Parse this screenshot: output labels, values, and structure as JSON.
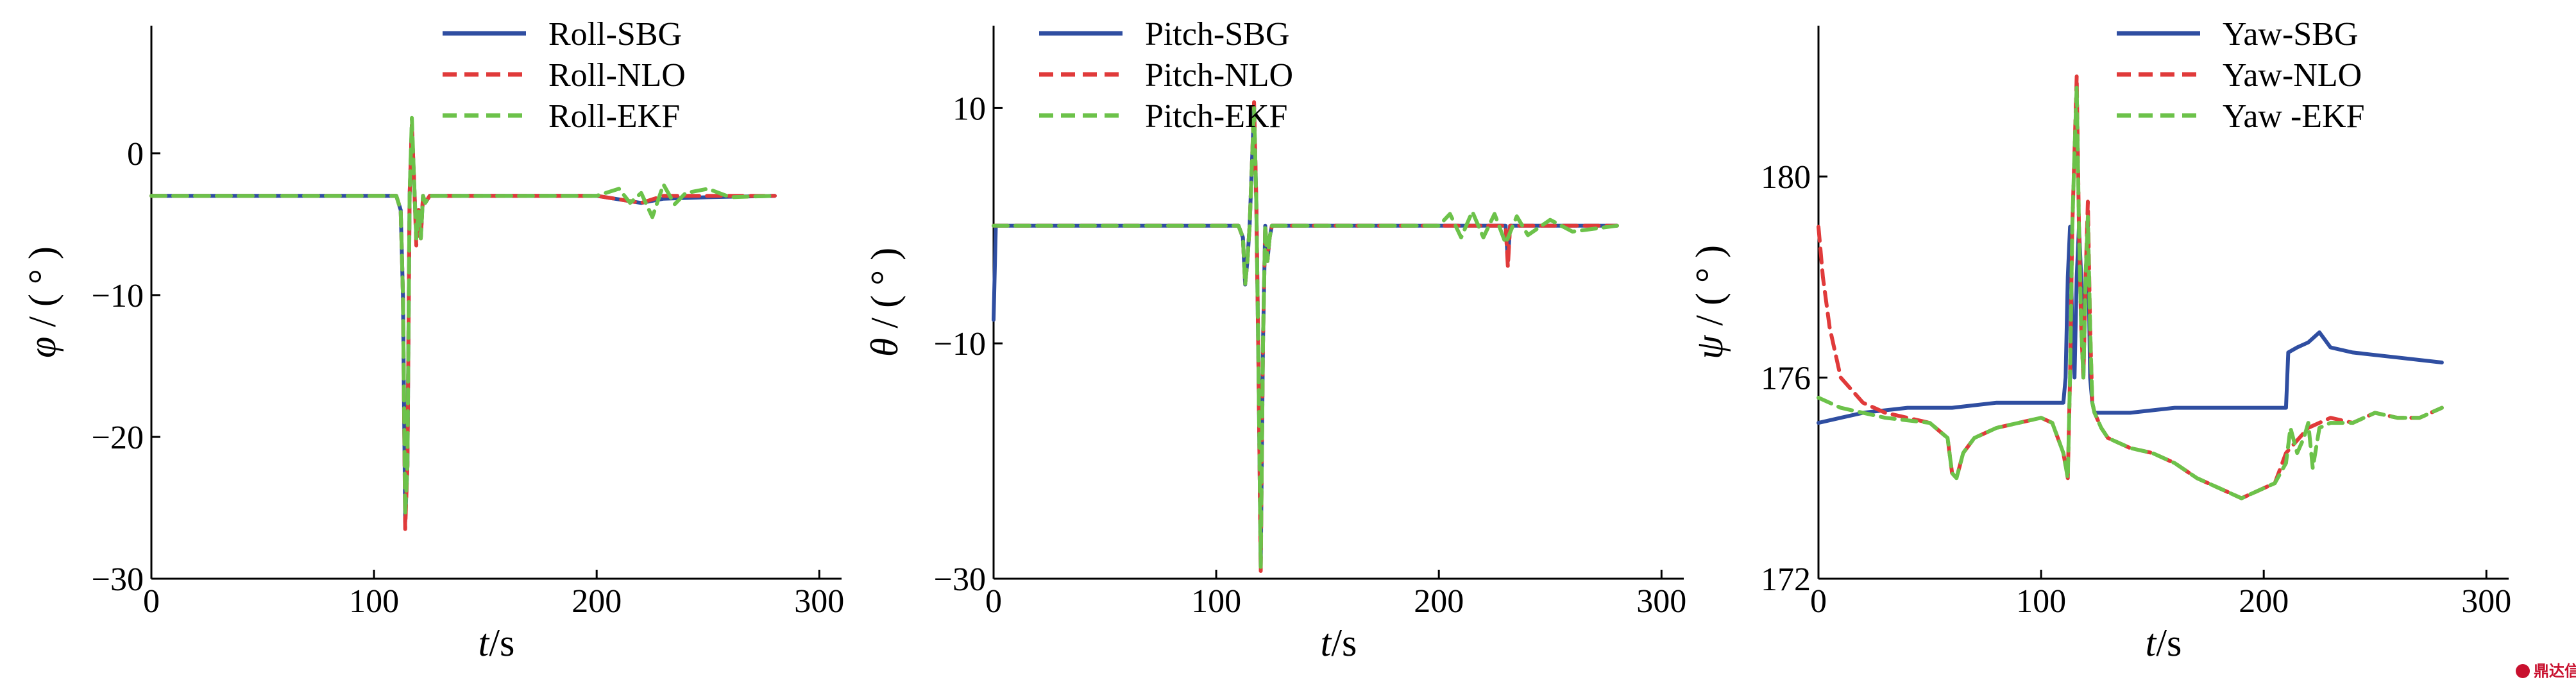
{
  "chart_data": [
    {
      "type": "line",
      "ylabel_symbol": "φ",
      "ylabel_unit": "/ ( ° )",
      "xlabel_symbol": "t",
      "xlabel_unit": "/s",
      "xlim": [
        0,
        310
      ],
      "ylim": [
        -30,
        9
      ],
      "xticks": [
        0,
        100,
        200,
        300
      ],
      "yticks": [
        0,
        -10,
        -20,
        -30
      ],
      "legend_position": "top-right",
      "series": [
        {
          "name": "Roll-SBG",
          "color": "#2f4ea1",
          "dash": false,
          "x": [
            0,
            50,
            110,
            112,
            113,
            114,
            115,
            116,
            117,
            118,
            119,
            120,
            121,
            122,
            123,
            125,
            150,
            200,
            220,
            230,
            250,
            280
          ],
          "y": [
            -3,
            -3,
            -3,
            -4,
            -10,
            -26,
            -22,
            -3,
            2,
            -2,
            -6,
            -4,
            -6,
            -3,
            -3.5,
            -3,
            -3,
            -3,
            -3.5,
            -3.2,
            -3.1,
            -3
          ]
        },
        {
          "name": "Roll-NLO",
          "color": "#e03a3a",
          "dash": true,
          "x": [
            0,
            50,
            110,
            112,
            113,
            114,
            115,
            116,
            117,
            118,
            119,
            120,
            121,
            122,
            123,
            125,
            150,
            200,
            220,
            230,
            250,
            280
          ],
          "y": [
            -3,
            -3,
            -3,
            -4,
            -10,
            -26.5,
            -22,
            -3,
            2,
            -2,
            -6.5,
            -4,
            -6,
            -3,
            -3.5,
            -3,
            -3,
            -3,
            -3.5,
            -3,
            -3,
            -3
          ]
        },
        {
          "name": "Roll-EKF",
          "color": "#6cc24a",
          "dash": true,
          "x": [
            0,
            50,
            110,
            112,
            113,
            114,
            115,
            116,
            117,
            118,
            119,
            120,
            121,
            122,
            123,
            125,
            150,
            200,
            210,
            215,
            220,
            225,
            230,
            235,
            240,
            250,
            260,
            280
          ],
          "y": [
            -3,
            -3,
            -3,
            -4,
            -10,
            -25.5,
            -22,
            -3,
            2.5,
            -2,
            -6,
            -4,
            -6,
            -3,
            -3.5,
            -3,
            -3,
            -3,
            -2.5,
            -3.5,
            -2.8,
            -4.5,
            -2.2,
            -3.6,
            -2.8,
            -2.5,
            -3.1,
            -3
          ]
        }
      ]
    },
    {
      "type": "line",
      "ylabel_symbol": "θ",
      "ylabel_unit": "/ ( ° )",
      "xlabel_symbol": "t",
      "xlabel_unit": "/s",
      "xlim": [
        0,
        310
      ],
      "ylim": [
        -30,
        17
      ],
      "xticks": [
        0,
        100,
        200,
        300
      ],
      "yticks": [
        10,
        -10,
        -30
      ],
      "legend_position": "top",
      "series": [
        {
          "name": "Pitch-SBG",
          "color": "#2f4ea1",
          "dash": false,
          "x": [
            0,
            1,
            3,
            50,
            110,
            112,
            113,
            114,
            115,
            116,
            117,
            118,
            119,
            120,
            121,
            122,
            123,
            124,
            125,
            130,
            150,
            200,
            220,
            230,
            231,
            232,
            240,
            260,
            280
          ],
          "y": [
            -8,
            0,
            0,
            0,
            0,
            -1,
            -5,
            -3,
            0,
            5,
            10,
            2,
            -12,
            -29,
            -10,
            0,
            -3,
            -1,
            0,
            0,
            0,
            0,
            0,
            0,
            -3,
            0,
            0,
            0,
            0
          ]
        },
        {
          "name": "Pitch-NLO",
          "color": "#e03a3a",
          "dash": true,
          "x": [
            0,
            3,
            50,
            110,
            112,
            113,
            114,
            115,
            116,
            117,
            118,
            119,
            120,
            121,
            122,
            123,
            124,
            125,
            130,
            150,
            200,
            220,
            230,
            231,
            232,
            240,
            260,
            280
          ],
          "y": [
            0,
            0,
            0,
            0,
            -1,
            -5,
            -3,
            0,
            5,
            10.5,
            2,
            -12,
            -29.5,
            -10,
            0,
            -3,
            -1,
            0,
            0,
            0,
            0,
            0,
            0,
            -3.5,
            0,
            0,
            0,
            0
          ]
        },
        {
          "name": "Pitch-EKF",
          "color": "#6cc24a",
          "dash": true,
          "x": [
            0,
            3,
            50,
            110,
            112,
            113,
            114,
            115,
            116,
            117,
            118,
            119,
            120,
            121,
            122,
            123,
            124,
            125,
            130,
            150,
            200,
            205,
            210,
            215,
            220,
            225,
            230,
            235,
            240,
            250,
            260,
            280
          ],
          "y": [
            0,
            0,
            0,
            0,
            -1,
            -5,
            -3,
            0,
            5,
            10,
            2,
            -12,
            -29,
            -10,
            0,
            -3,
            -1,
            0,
            0,
            0,
            0,
            1,
            -1,
            1.2,
            -1,
            1,
            -1.5,
            0.8,
            -0.8,
            0.5,
            -0.5,
            0
          ]
        }
      ]
    },
    {
      "type": "line",
      "ylabel_symbol": "ψ",
      "ylabel_unit": "/ ( ° )",
      "xlabel_symbol": "t",
      "xlabel_unit": "/s",
      "xlim": [
        0,
        310
      ],
      "ylim": [
        172,
        183
      ],
      "xticks": [
        0,
        100,
        200,
        300
      ],
      "yticks": [
        180,
        176,
        172
      ],
      "legend_position": "top-right",
      "series": [
        {
          "name": "Yaw-SBG",
          "color": "#2f4ea1",
          "dash": false,
          "x": [
            0,
            10,
            20,
            40,
            60,
            80,
            100,
            110,
            111,
            112,
            113,
            114,
            115,
            116,
            117,
            118,
            119,
            120,
            121,
            122,
            123,
            124,
            125,
            126,
            130,
            140,
            160,
            180,
            200,
            210,
            211,
            215,
            220,
            225,
            230,
            240,
            260,
            280
          ],
          "y": [
            175.1,
            175.2,
            175.3,
            175.4,
            175.4,
            175.5,
            175.5,
            175.5,
            176,
            178,
            179,
            177,
            176,
            178,
            179,
            178,
            176,
            178,
            179,
            176,
            175.5,
            175.3,
            175.3,
            175.3,
            175.3,
            175.3,
            175.4,
            175.4,
            175.4,
            175.4,
            176.5,
            176.6,
            176.7,
            176.9,
            176.6,
            176.5,
            176.4,
            176.3
          ]
        },
        {
          "name": "Yaw-NLO",
          "color": "#e03a3a",
          "dash": true,
          "x": [
            0,
            2,
            5,
            10,
            20,
            30,
            50,
            58,
            60,
            62,
            65,
            70,
            80,
            100,
            105,
            110,
            112,
            113,
            114,
            115,
            116,
            117,
            118,
            119,
            120,
            121,
            122,
            123,
            124,
            125,
            127,
            130,
            140,
            150,
            160,
            170,
            180,
            190,
            200,
            205,
            210,
            220,
            230,
            240,
            250,
            260,
            270,
            280
          ],
          "y": [
            179,
            178,
            177,
            176,
            175.5,
            175.3,
            175.1,
            174.8,
            174.1,
            174,
            174.5,
            174.8,
            175,
            175.2,
            175.1,
            174.5,
            174,
            176,
            179,
            180.5,
            182,
            179,
            177,
            176,
            178,
            179.5,
            177,
            175.5,
            175.3,
            175.2,
            175,
            174.8,
            174.6,
            174.5,
            174.3,
            174,
            173.8,
            173.6,
            173.8,
            173.9,
            174.5,
            175,
            175.2,
            175.1,
            175.3,
            175.2,
            175.2,
            175.4
          ]
        },
        {
          "name": "Yaw -EKF",
          "color": "#6cc24a",
          "dash": true,
          "x": [
            0,
            5,
            10,
            20,
            30,
            50,
            58,
            60,
            62,
            65,
            70,
            80,
            100,
            105,
            110,
            112,
            113,
            114,
            115,
            116,
            117,
            118,
            119,
            120,
            121,
            122,
            123,
            124,
            125,
            127,
            130,
            140,
            150,
            160,
            170,
            180,
            190,
            200,
            205,
            210,
            212,
            215,
            218,
            220,
            222,
            225,
            230,
            240,
            250,
            260,
            270,
            280
          ],
          "y": [
            175.6,
            175.5,
            175.4,
            175.3,
            175.2,
            175.1,
            174.8,
            174.1,
            174,
            174.5,
            174.8,
            175,
            175.2,
            175.1,
            174.5,
            174,
            176,
            179,
            180.5,
            181.8,
            179,
            177,
            176,
            178,
            179.2,
            177,
            175.5,
            175.3,
            175.2,
            175,
            174.8,
            174.6,
            174.5,
            174.3,
            174,
            173.8,
            173.6,
            173.8,
            173.9,
            174.3,
            175,
            174.5,
            174.8,
            175.1,
            174.2,
            175,
            175.1,
            175.1,
            175.3,
            175.2,
            175.2,
            175.4
          ]
        }
      ]
    }
  ],
  "watermark": {
    "text": "鼎达信",
    "color": "#c8102e"
  }
}
